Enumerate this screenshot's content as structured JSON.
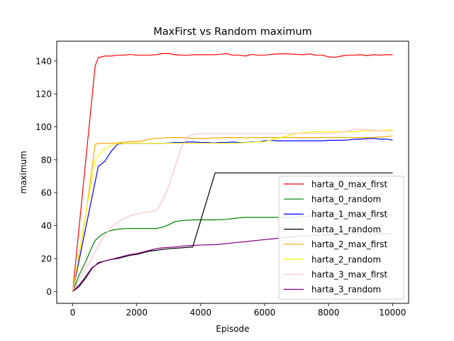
{
  "chart_data": {
    "type": "line",
    "title": "MaxFirst vs Random maximum",
    "xlabel": "Episode",
    "ylabel": "maximum",
    "xlim": [
      -500,
      10500
    ],
    "ylim": [
      -7.2,
      152
    ],
    "xticks": [
      0,
      2000,
      4000,
      6000,
      8000,
      10000
    ],
    "xtick_labels": [
      "0",
      "2000",
      "4000",
      "6000",
      "8000",
      "10000"
    ],
    "yticks": [
      0,
      20,
      40,
      60,
      80,
      100,
      120,
      140
    ],
    "ytick_labels": [
      "0",
      "20",
      "40",
      "60",
      "80",
      "100",
      "120",
      "140"
    ],
    "grid": false,
    "legend_position": "lower-right",
    "series": [
      {
        "name": "harta_0_max_first",
        "color": "#ff0000",
        "x": [
          0,
          700,
          800,
          1000,
          1200,
          1400,
          1600,
          1800,
          2000,
          2200,
          2400,
          2600,
          2800,
          3000,
          3200,
          3400,
          3600,
          3800,
          4000,
          4200,
          4400,
          4600,
          4800,
          5000,
          5200,
          5400,
          5600,
          5800,
          6000,
          6200,
          6400,
          6600,
          6800,
          7000,
          7200,
          7400,
          7600,
          7800,
          8000,
          8200,
          8400,
          8600,
          8800,
          9000,
          9200,
          9400,
          9600,
          9800,
          10000
        ],
        "y": [
          0,
          137,
          142,
          143,
          143,
          143.5,
          143.5,
          144,
          143.5,
          143.5,
          143.5,
          143.8,
          144.5,
          144.5,
          143.8,
          143.5,
          143.5,
          143.8,
          143.8,
          143.8,
          143.8,
          144,
          144.5,
          143.5,
          143.5,
          143,
          144,
          143.5,
          143.5,
          144,
          144.3,
          144.3,
          144.3,
          144,
          143.8,
          144.3,
          143.5,
          143.5,
          142.5,
          142.2,
          143,
          143.5,
          143.5,
          143.8,
          143.2,
          143.8,
          143.5,
          143.8,
          143.8
        ]
      },
      {
        "name": "harta_0_random",
        "color": "#008000",
        "x": [
          0,
          200,
          400,
          600,
          700,
          900,
          1100,
          1300,
          1500,
          1700,
          2000,
          2300,
          2600,
          2800,
          3000,
          3200,
          3400,
          3600,
          3800,
          4000,
          4200,
          4400,
          4600,
          4800,
          5000,
          5200,
          5400,
          5600,
          5800,
          6000,
          6200,
          6400,
          6600,
          6800,
          7000,
          7200,
          7400,
          7600,
          7800,
          8000,
          8200,
          8400,
          8600,
          8800,
          9000,
          9200,
          9400,
          9600,
          9800,
          10000
        ],
        "y": [
          0,
          10,
          18,
          27,
          31,
          34.5,
          36.5,
          37.5,
          38,
          38.3,
          38.3,
          38.3,
          38.2,
          39,
          40.5,
          42.5,
          43,
          43.3,
          43.5,
          43.5,
          43.5,
          43.5,
          43.6,
          43.8,
          44.3,
          44.8,
          45,
          45,
          45,
          45,
          45,
          45,
          45,
          45,
          45.2,
          45.5,
          45.8,
          46,
          46.2,
          46.3,
          46.5,
          46.5,
          46.5,
          46.5,
          46.5,
          46.5,
          46.5,
          46.5,
          46.5,
          46.5
        ]
      },
      {
        "name": "harta_1_max_first",
        "color": "#0000ff",
        "x": [
          0,
          400,
          800,
          1000,
          1200,
          1400,
          1600,
          1800,
          2000,
          2200,
          2400,
          2600,
          2800,
          3000,
          3200,
          3400,
          3600,
          3800,
          4000,
          4200,
          4400,
          4600,
          4800,
          5000,
          5200,
          5400,
          5600,
          5800,
          6000,
          6200,
          6400,
          6600,
          6800,
          7000,
          7200,
          7400,
          7600,
          7800,
          8000,
          8200,
          8400,
          8600,
          8800,
          9000,
          9200,
          9400,
          9600,
          9800,
          10000
        ],
        "y": [
          0,
          38,
          76,
          79,
          85,
          89.5,
          90,
          90,
          90,
          90,
          90,
          90,
          90,
          90.2,
          90.5,
          90.5,
          90.8,
          90.8,
          90.5,
          90.5,
          90.2,
          90.5,
          90.5,
          90.8,
          90.5,
          90.5,
          90.8,
          90.8,
          91.5,
          91.8,
          91.5,
          91.5,
          91.5,
          91.5,
          91.5,
          91.5,
          91.5,
          91.5,
          91.8,
          91.8,
          91.8,
          92,
          92.5,
          92.5,
          92.8,
          93,
          92.5,
          92.5,
          92
        ]
      },
      {
        "name": "harta_1_random",
        "color": "#000000",
        "x": [
          0,
          200,
          400,
          600,
          800,
          1000,
          1200,
          1400,
          1600,
          1800,
          2000,
          2200,
          2400,
          2600,
          2800,
          3000,
          3200,
          3400,
          3600,
          3750,
          4450,
          5000,
          6000,
          7000,
          8000,
          9000,
          10000
        ],
        "y": [
          0,
          3,
          8,
          14,
          17.5,
          18.5,
          19.5,
          20,
          21,
          22,
          22.5,
          23.5,
          24.5,
          25,
          25.5,
          26,
          26.2,
          26.5,
          26.8,
          27,
          72,
          72,
          72,
          72,
          72,
          72,
          72
        ]
      },
      {
        "name": "harta_2_max_first",
        "color": "#ffa500",
        "x": [
          0,
          400,
          700,
          900,
          1200,
          1500,
          1800,
          2000,
          2200,
          2400,
          2600,
          2800,
          3000,
          3200,
          3400,
          3600,
          3800,
          4000,
          4200,
          4400,
          4600,
          4800,
          5000,
          5200,
          5400,
          5600,
          5800,
          6000,
          6200,
          6400,
          6600,
          6800,
          7000,
          7200,
          7400,
          7600,
          7800,
          8000,
          8200,
          8400,
          8600,
          8800,
          9000,
          9200,
          9400,
          9600,
          9800,
          10000
        ],
        "y": [
          0,
          45,
          89.5,
          90,
          90,
          90.5,
          91,
          91,
          91.5,
          92.5,
          93,
          93.2,
          93.5,
          93.5,
          93.5,
          93.2,
          93,
          93,
          93,
          93.3,
          93.3,
          93.5,
          93.5,
          93.5,
          93.3,
          93.5,
          93.5,
          93.5,
          93.5,
          93.5,
          93.5,
          93.5,
          93.5,
          93.5,
          93.5,
          93.5,
          93.5,
          93.5,
          93.5,
          93.5,
          93.5,
          93.5,
          93.5,
          93.5,
          93.5,
          93.8,
          94,
          94.5
        ]
      },
      {
        "name": "harta_2_random",
        "color": "#ffff00",
        "x": [
          0,
          300,
          700,
          900,
          1100,
          1300,
          1500,
          2000,
          2500,
          3000,
          3500,
          4000,
          4500,
          5000,
          5500,
          6000,
          6200,
          6400,
          6600,
          6800,
          7000,
          7200,
          7400,
          7600,
          7800,
          8000,
          8200,
          8400,
          8600,
          8800,
          9000,
          9200,
          9400,
          9600,
          9800,
          10000
        ],
        "y": [
          0,
          35,
          80,
          85,
          88,
          89.5,
          90,
          90,
          90,
          90,
          90,
          90,
          90,
          90,
          90.5,
          91,
          92,
          93,
          94,
          95,
          96,
          96.5,
          96.8,
          97,
          97,
          97,
          97,
          97,
          97,
          97,
          97.5,
          97.5,
          97.5,
          97.8,
          98,
          98
        ]
      },
      {
        "name": "harta_3_max_first",
        "color": "#ffc0cb",
        "x": [
          0,
          200,
          400,
          600,
          800,
          1000,
          1200,
          1400,
          1600,
          1800,
          2000,
          2200,
          2400,
          2600,
          2800,
          3000,
          3200,
          3400,
          3600,
          3800,
          4000,
          5000,
          6000,
          6600,
          7000,
          7500,
          8000,
          8500,
          8800,
          9000,
          9200,
          9400,
          9600,
          9800,
          10000
        ],
        "y": [
          0,
          7,
          14,
          20,
          28,
          34,
          39,
          42,
          44.5,
          46,
          47,
          48,
          48.5,
          49,
          55,
          64,
          76,
          88,
          94,
          95.5,
          96,
          96,
          96,
          96,
          96,
          96,
          96,
          97,
          98.5,
          98.5,
          98.2,
          97.8,
          97.5,
          97.5,
          97.5
        ]
      },
      {
        "name": "harta_3_random",
        "color": "#800080",
        "x": [
          0,
          200,
          400,
          600,
          800,
          1000,
          1200,
          1400,
          1600,
          1800,
          2000,
          2200,
          2400,
          2600,
          2800,
          3000,
          3200,
          3400,
          3600,
          3800,
          4000,
          4500,
          5000,
          5500,
          6000,
          6500,
          7000,
          7500,
          8000,
          8500,
          9000,
          9500,
          10000
        ],
        "y": [
          0,
          4,
          9,
          14.5,
          17,
          18.5,
          19.5,
          20.5,
          21.5,
          22.5,
          23,
          24,
          25,
          26,
          26.5,
          26.8,
          27,
          27.5,
          27.8,
          28,
          28.2,
          28.5,
          29.5,
          30.5,
          31.5,
          32.5,
          33.5,
          34,
          34.5,
          35,
          35,
          35,
          35
        ]
      }
    ]
  }
}
